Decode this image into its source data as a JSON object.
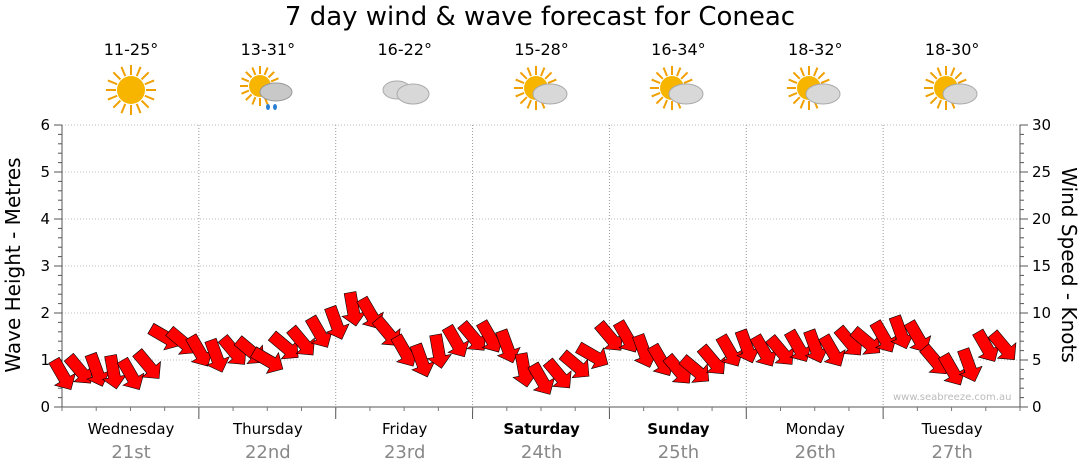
{
  "title": "7 day wind & wave forecast for Coneac",
  "days": [
    {
      "name": "Wednesday",
      "date": "21st",
      "temp": "11-25°",
      "icon": "sun-icon",
      "bold": false
    },
    {
      "name": "Thursday",
      "date": "22nd",
      "temp": "13-31°",
      "icon": "sun-cloud-rain-icon",
      "bold": false
    },
    {
      "name": "Friday",
      "date": "23rd",
      "temp": "16-22°",
      "icon": "cloud-icon",
      "bold": false
    },
    {
      "name": "Saturday",
      "date": "24th",
      "temp": "15-28°",
      "icon": "sun-cloud-icon",
      "bold": true
    },
    {
      "name": "Sunday",
      "date": "25th",
      "temp": "16-34°",
      "icon": "sun-cloud-icon",
      "bold": true
    },
    {
      "name": "Monday",
      "date": "26th",
      "temp": "18-32°",
      "icon": "sun-cloud-icon",
      "bold": false
    },
    {
      "name": "Tuesday",
      "date": "27th",
      "temp": "18-30°",
      "icon": "sun-cloud-icon",
      "bold": false
    }
  ],
  "watermark": "www.seabreeze.com.au",
  "colors": {
    "wind_arrow": "#ff0000",
    "arrow_outline": "#000000",
    "grid": "#999999"
  },
  "chart_data": {
    "type": "line",
    "ylabel_left": "Wave Height - Metres",
    "ylabel_right": "Wind Speed - Knots",
    "yticks_left": [
      "0",
      "1",
      "2",
      "3",
      "4",
      "5",
      "6"
    ],
    "yticks_right": [
      "0",
      "5",
      "10",
      "15",
      "20",
      "25",
      "30"
    ],
    "ylim_left": [
      0,
      6
    ],
    "ylim_right": [
      0,
      30
    ],
    "grid": true,
    "x_unit": "hours since start of Wednesday 21st",
    "series": [
      {
        "name": "Wind Speed - Knots",
        "x": [
          0,
          3,
          6,
          9,
          12,
          15,
          18,
          21,
          24,
          27,
          30,
          33,
          36,
          39,
          42,
          45,
          48,
          51,
          54,
          57,
          60,
          63,
          66,
          69,
          72,
          75,
          78,
          81,
          84,
          87,
          90,
          93,
          96,
          99,
          102,
          105,
          108,
          111,
          114,
          117,
          120,
          123,
          126,
          129,
          132,
          135,
          138,
          141,
          144,
          147,
          150,
          153,
          156,
          159,
          162,
          165
        ],
        "values": [
          3.5,
          4,
          4,
          3.8,
          3.5,
          4.5,
          7.5,
          7,
          6,
          5.5,
          6,
          6,
          5,
          6.5,
          7,
          8,
          9,
          10.5,
          10,
          8,
          6,
          5,
          6,
          7,
          7.5,
          7.5,
          6.5,
          4,
          3,
          3.5,
          4.5,
          5.5,
          7.5,
          7.5,
          6,
          5,
          4,
          4,
          5,
          6,
          6.5,
          6,
          6,
          6.5,
          6.5,
          6,
          7,
          7,
          7.5,
          8,
          7.5,
          5,
          4,
          4.5,
          6.5,
          6.5
        ],
        "direction_deg": [
          150,
          140,
          160,
          170,
          150,
          140,
          120,
          130,
          150,
          160,
          140,
          130,
          120,
          130,
          140,
          150,
          160,
          170,
          150,
          140,
          150,
          160,
          170,
          150,
          140,
          150,
          160,
          170,
          150,
          140,
          130,
          120,
          140,
          150,
          160,
          150,
          140,
          130,
          140,
          150,
          160,
          150,
          140,
          150,
          160,
          150,
          140,
          130,
          150,
          160,
          150,
          140,
          150,
          160,
          150,
          140
        ]
      }
    ]
  }
}
